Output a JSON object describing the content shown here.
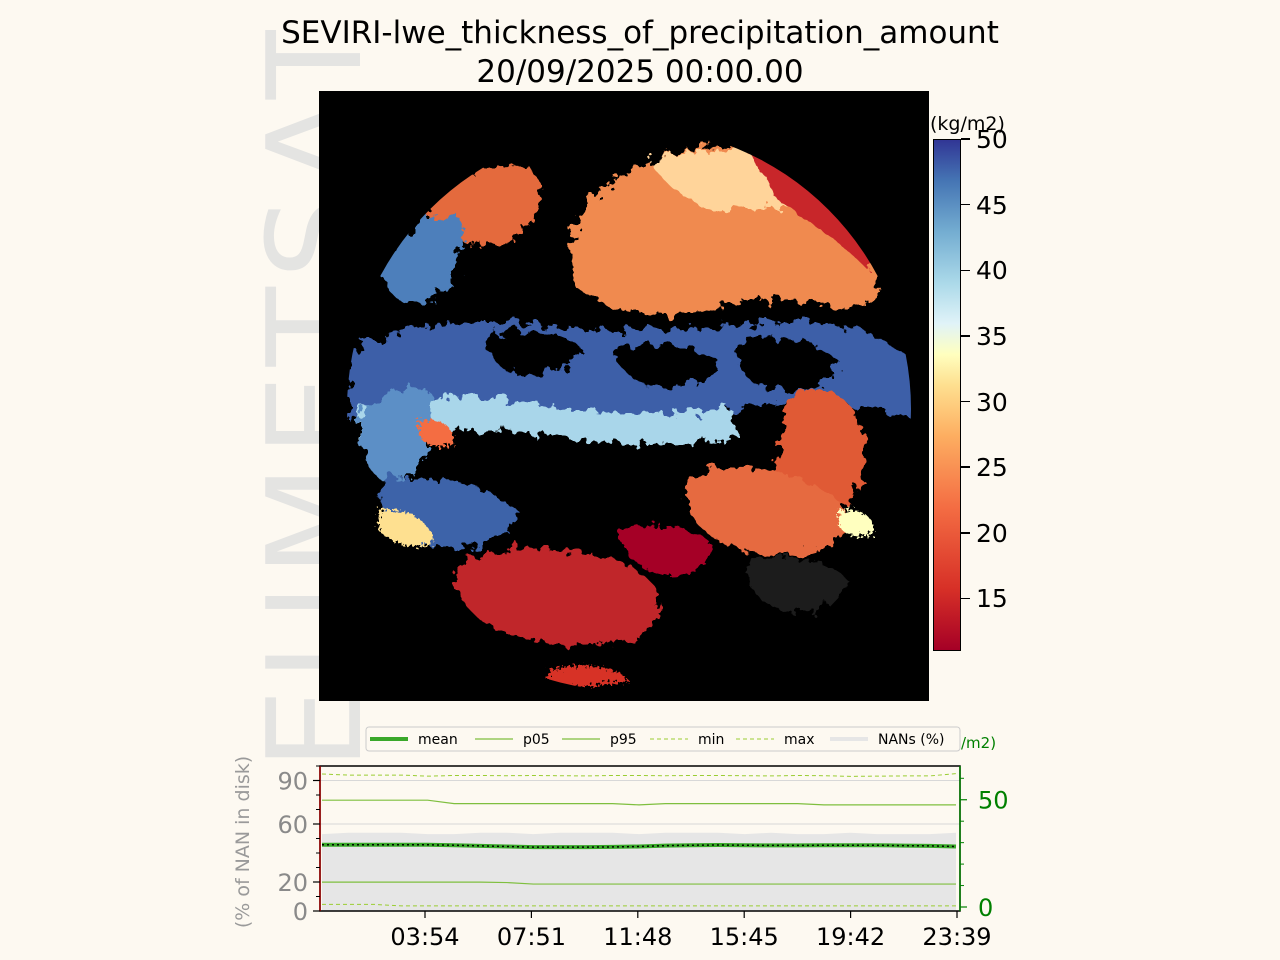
{
  "title": {
    "line1": "SEVIRI-lwe_thickness_of_precipitation_amount",
    "line2": "20/09/2025 00:00.00"
  },
  "watermark": "EUMETSAT",
  "colorbar": {
    "unit": "(kg/m2)",
    "ticks": [
      "50",
      "45",
      "40",
      "35",
      "30",
      "25",
      "20",
      "15"
    ],
    "tick_values": [
      50,
      45,
      40,
      35,
      30,
      25,
      20,
      15
    ],
    "range": [
      11,
      50
    ],
    "colormap": "RdYlBu",
    "colors": [
      "#a50026",
      "#d73027",
      "#f46d43",
      "#fdae61",
      "#fee090",
      "#ffffbf",
      "#e0f3f8",
      "#abd9e9",
      "#74add1",
      "#4575b4",
      "#313695"
    ]
  },
  "chart_data": {
    "type": "line",
    "legend": [
      "mean",
      "p05",
      "p95",
      "min",
      "max",
      "NANs (%)"
    ],
    "legend_placement": "top",
    "ylabel_left": "(% of NAN in disk)",
    "ylabel_right": "(kg/m2)",
    "ylabel_right_visible": "/m2)",
    "xtick_labels": [
      "03:54",
      "07:51",
      "11:48",
      "15:45",
      "19:42",
      "23:39"
    ],
    "ytick_labels_left": [
      "90",
      "60",
      "20",
      "0"
    ],
    "ytick_labels_right": [
      "50",
      "0"
    ],
    "ylim_left": [
      0,
      100
    ],
    "ylim_right": [
      0,
      62
    ],
    "x": [
      "00:00",
      "01:00",
      "02:00",
      "03:00",
      "04:00",
      "05:00",
      "06:00",
      "07:00",
      "08:00",
      "09:00",
      "10:00",
      "11:00",
      "12:00",
      "13:00",
      "14:00",
      "15:00",
      "16:00",
      "17:00",
      "18:00",
      "19:00",
      "20:00",
      "21:00",
      "22:00",
      "23:00",
      "23:45"
    ],
    "series": [
      {
        "name": "mean",
        "axis": "right",
        "color": "#3aa82a",
        "values": [
          29,
          29,
          29,
          29,
          29,
          28.8,
          28.5,
          28.2,
          27.9,
          27.9,
          27.9,
          28,
          28.2,
          28.6,
          28.8,
          28.9,
          28.8,
          28.7,
          28.7,
          28.8,
          28.8,
          28.8,
          28.6,
          28.5,
          28.2
        ]
      },
      {
        "name": "p05",
        "axis": "right",
        "color": "#7fbf3f",
        "values": [
          11.6,
          11.6,
          11.6,
          11.6,
          11.6,
          11.6,
          11.6,
          11.4,
          10.7,
          10.7,
          10.7,
          10.7,
          10.7,
          10.7,
          10.7,
          10.7,
          10.7,
          10.7,
          10.7,
          10.7,
          10.7,
          10.7,
          10.7,
          10.7,
          10.7
        ]
      },
      {
        "name": "p95",
        "axis": "right",
        "color": "#7fbf3f",
        "values": [
          49.8,
          49.8,
          49.8,
          49.8,
          49.8,
          48.2,
          48.2,
          48.2,
          48.2,
          48.2,
          48.2,
          48.2,
          47.6,
          48.2,
          48.2,
          48.2,
          48.2,
          48.2,
          48.2,
          47.6,
          47.6,
          47.6,
          47.6,
          47.6,
          47.6
        ]
      },
      {
        "name": "min",
        "axis": "right",
        "color": "#9acd32",
        "values": [
          1.2,
          1.2,
          1.2,
          0.5,
          0.5,
          0.5,
          0.5,
          0.5,
          0.5,
          0.5,
          0.5,
          0.5,
          0.5,
          0.5,
          0.5,
          0.5,
          0.5,
          0.5,
          0.5,
          0.5,
          0.5,
          0.5,
          0.5,
          0.5,
          0.5
        ]
      },
      {
        "name": "max",
        "axis": "right",
        "color": "#9acd32",
        "values": [
          62,
          61.5,
          61.5,
          61.5,
          61,
          61.3,
          61.3,
          61.2,
          61.3,
          61.2,
          61.1,
          61.3,
          61.3,
          61.2,
          61.3,
          61.3,
          61.2,
          61.1,
          61.3,
          61.2,
          60.9,
          61,
          61.1,
          61.1,
          62.2
        ]
      },
      {
        "name": "NANs (%)",
        "axis": "left",
        "color": "#e6e6e6",
        "values": [
          53,
          54,
          54,
          54,
          53,
          53,
          54,
          54,
          53,
          54,
          54,
          54,
          53,
          54,
          54,
          54,
          53,
          54,
          53,
          53,
          54,
          53,
          53,
          53,
          54
        ]
      }
    ]
  }
}
